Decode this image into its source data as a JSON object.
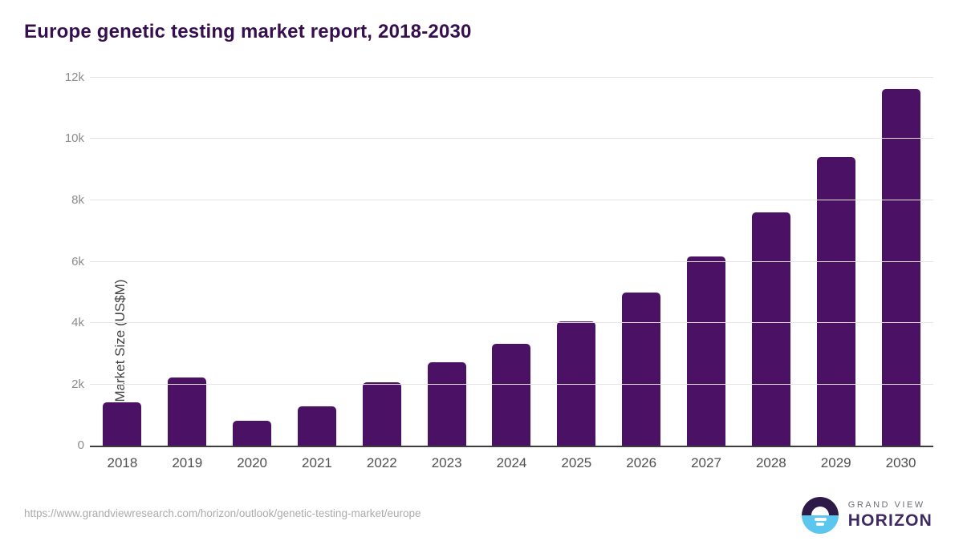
{
  "header": {
    "title": "Europe genetic testing market report, 2018-2030"
  },
  "chart_data": {
    "type": "bar",
    "title": "Europe genetic testing market report, 2018-2030",
    "categories": [
      "2018",
      "2019",
      "2020",
      "2021",
      "2022",
      "2023",
      "2024",
      "2025",
      "2026",
      "2027",
      "2028",
      "2029",
      "2030"
    ],
    "values": [
      1400,
      2210,
      810,
      1280,
      2060,
      2710,
      3310,
      4060,
      5000,
      6170,
      7600,
      9400,
      11640
    ],
    "xlabel": "",
    "ylabel": "Market Size (US$M)",
    "ylim": [
      0,
      12000
    ],
    "yticks": [
      {
        "label": "0",
        "value": 0
      },
      {
        "label": "2k",
        "value": 2000
      },
      {
        "label": "4k",
        "value": 4000
      },
      {
        "label": "6k",
        "value": 6000
      },
      {
        "label": "8k",
        "value": 8000
      },
      {
        "label": "10k",
        "value": 10000
      },
      {
        "label": "12k",
        "value": 12000
      }
    ],
    "grid": true,
    "legend": "none",
    "bar_color": "#4a1164"
  },
  "footer": {
    "source_url": "https://www.grandviewresearch.com/horizon/outlook/genetic-testing-market/europe",
    "logo": {
      "top_text": "GRAND VIEW",
      "bottom_text": "HORIZON"
    }
  },
  "colors": {
    "bar": "#4a1164",
    "title_text": "#36104e",
    "gridline": "#e4e4e4",
    "axis_line": "#3d3d3d",
    "y_tick_text": "#8c8c8c",
    "x_tick_text": "#4f4f4f",
    "url_text": "#ababab",
    "logo_circle_top": "#2e1a47",
    "logo_circle_bottom": "#5bc6ee"
  }
}
